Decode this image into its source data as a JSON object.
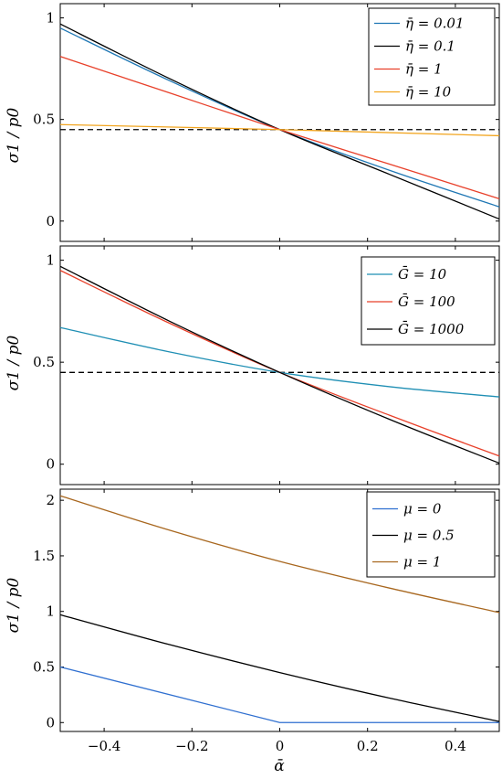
{
  "chart_data": [
    {
      "type": "line",
      "ylabel": "σ1 / p0",
      "xlim": [
        -0.5,
        0.5
      ],
      "ylim": [
        -0.1,
        1.07
      ],
      "yticks": [
        0,
        0.5,
        1
      ],
      "ytick_labels": [
        "0",
        "0.5",
        "1"
      ],
      "legend_position": "top-right",
      "series": [
        {
          "name": "η̄ = 0.01",
          "color": "#1f77b4",
          "x": [
            -0.5,
            -0.25,
            0,
            0.25,
            0.5
          ],
          "y": [
            0.95,
            0.69,
            0.45,
            0.25,
            0.07
          ]
        },
        {
          "name": "η̄ = 0.1",
          "color": "#000000",
          "x": [
            -0.5,
            -0.25,
            0,
            0.25,
            0.5
          ],
          "y": [
            0.97,
            0.7,
            0.45,
            0.23,
            0.01
          ]
        },
        {
          "name": "η̄ = 1",
          "color": "#e8402a",
          "x": [
            -0.5,
            -0.25,
            0,
            0.25,
            0.5
          ],
          "y": [
            0.81,
            0.63,
            0.45,
            0.28,
            0.11
          ]
        },
        {
          "name": "η̄ = 10",
          "color": "#f2a51f",
          "x": [
            -0.5,
            0,
            0.5
          ],
          "y": [
            0.475,
            0.45,
            0.42
          ]
        }
      ],
      "reference_line": {
        "y": 0.45,
        "style": "dashed",
        "color": "#000000"
      }
    },
    {
      "type": "line",
      "ylabel": "σ1 / p0",
      "xlim": [
        -0.5,
        0.5
      ],
      "ylim": [
        -0.1,
        1.07
      ],
      "yticks": [
        0,
        0.5,
        1
      ],
      "ytick_labels": [
        "0",
        "0.5",
        "1"
      ],
      "legend_position": "top-right",
      "series": [
        {
          "name": "Ḡ = 10",
          "color": "#1f8fb4",
          "x": [
            -0.5,
            -0.25,
            0,
            0.25,
            0.5
          ],
          "y": [
            0.67,
            0.55,
            0.45,
            0.38,
            0.33
          ]
        },
        {
          "name": "Ḡ = 100",
          "color": "#e8402a",
          "x": [
            -0.5,
            -0.25,
            0,
            0.25,
            0.5
          ],
          "y": [
            0.95,
            0.69,
            0.45,
            0.24,
            0.04
          ]
        },
        {
          "name": "Ḡ = 1000",
          "color": "#000000",
          "x": [
            -0.5,
            -0.25,
            0,
            0.25,
            0.5
          ],
          "y": [
            0.97,
            0.7,
            0.45,
            0.22,
            0.005
          ]
        }
      ],
      "reference_line": {
        "y": 0.45,
        "style": "dashed",
        "color": "#000000"
      }
    },
    {
      "type": "line",
      "ylabel": "σ1 / p0",
      "xlabel": "ᾱ",
      "xlim": [
        -0.5,
        0.5
      ],
      "ylim": [
        -0.08,
        2.1
      ],
      "yticks": [
        0,
        0.5,
        1,
        1.5,
        2
      ],
      "ytick_labels": [
        "0",
        "0.5",
        "1",
        "1.5",
        "2"
      ],
      "xticks": [
        -0.4,
        -0.2,
        0,
        0.2,
        0.4
      ],
      "xtick_labels": [
        "−0.4",
        "−0.2",
        "0",
        "0.2",
        "0.4"
      ],
      "legend_position": "top-right",
      "series": [
        {
          "name": "μ = 0",
          "color": "#2f6fd0",
          "x": [
            -0.5,
            0,
            0.5
          ],
          "y": [
            0.5,
            0.0,
            0.0
          ]
        },
        {
          "name": "μ = 0.5",
          "color": "#000000",
          "x": [
            -0.5,
            -0.25,
            0,
            0.25,
            0.5
          ],
          "y": [
            0.97,
            0.7,
            0.45,
            0.22,
            0.01
          ]
        },
        {
          "name": "μ = 1",
          "color": "#a8671f",
          "x": [
            -0.5,
            -0.25,
            0,
            0.25,
            0.5
          ],
          "y": [
            2.04,
            1.73,
            1.45,
            1.21,
            0.99
          ]
        }
      ]
    }
  ]
}
